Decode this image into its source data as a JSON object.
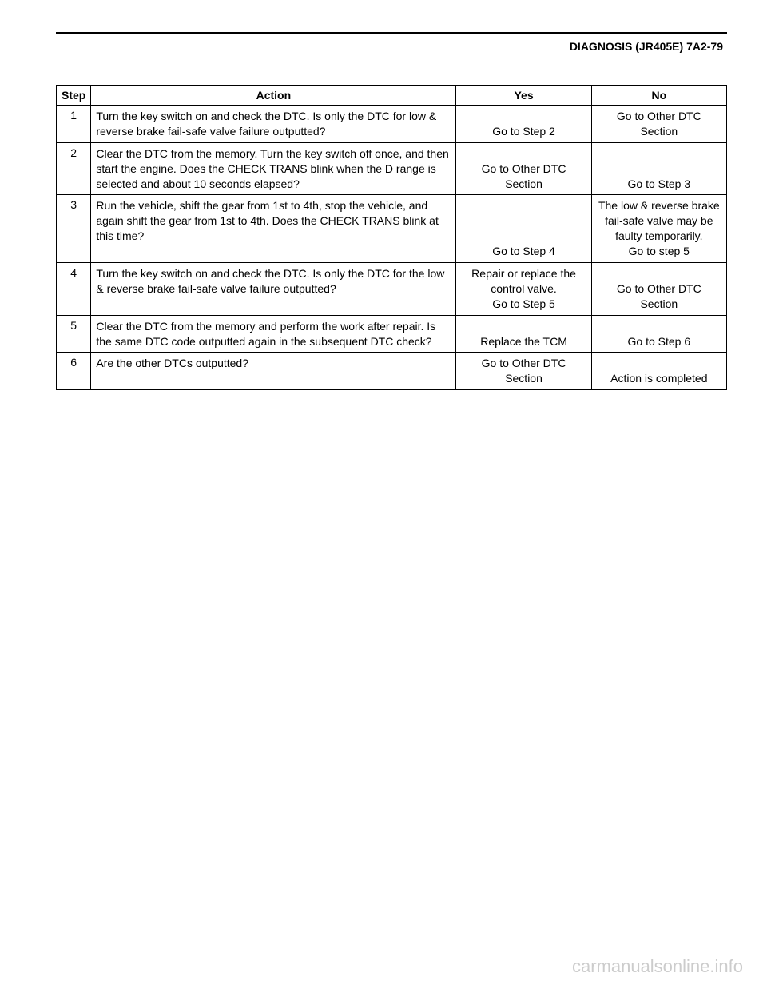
{
  "header": {
    "title": "DIAGNOSIS (JR405E)  7A2-79"
  },
  "table": {
    "columns": {
      "step": "Step",
      "action": "Action",
      "yes": "Yes",
      "no": "No"
    },
    "rows": [
      {
        "step": "1",
        "action": "Turn the key switch on and check the DTC. Is only the DTC for low & reverse brake fail-safe valve failure outputted?",
        "yes": "Go to Step 2",
        "no": "Go to Other DTC Section"
      },
      {
        "step": "2",
        "action": "Clear the DTC from the memory. Turn the key switch off once, and then start the engine. Does the CHECK TRANS blink when the D range is selected and about 10 seconds elapsed?",
        "yes": "Go to Other DTC Section",
        "no": "Go to Step 3"
      },
      {
        "step": "3",
        "action": "Run the vehicle, shift the gear from 1st to 4th, stop the vehicle, and again shift the gear from 1st to 4th. Does the CHECK TRANS blink at this time?",
        "yes": "Go to Step 4",
        "no": "The low & reverse brake fail-safe valve may be faulty temporarily.\nGo to step 5"
      },
      {
        "step": "4",
        "action": "Turn the key switch on and check the DTC. Is only the DTC for the low & reverse brake fail-safe valve failure outputted?",
        "yes": "Repair or replace the control valve.\nGo to Step 5",
        "no": "Go to Other DTC Section"
      },
      {
        "step": "5",
        "action": "Clear the DTC from the memory and perform the work after repair. Is the same DTC code outputted again in the subsequent DTC check?",
        "yes": "Replace the TCM",
        "no": "Go to Step 6"
      },
      {
        "step": "6",
        "action": "Are the other DTCs outputted?",
        "yes": "Go to Other DTC Section",
        "no": "Action is completed"
      }
    ]
  },
  "watermark": "carmanualsonline.info",
  "styling": {
    "font_family": "Arial",
    "body_font_size": 14,
    "header_font_size": 14,
    "border_color": "#000000",
    "background_color": "#ffffff",
    "watermark_color": "#cccccc",
    "col_widths": {
      "step": 42,
      "action": 460,
      "yes": 170,
      "no": 170
    }
  }
}
